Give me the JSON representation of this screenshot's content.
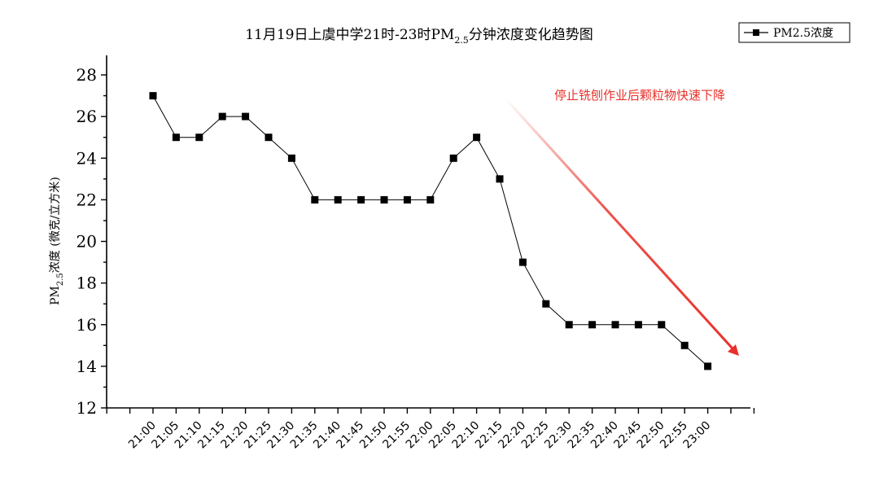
{
  "chart_data": {
    "type": "line",
    "title": {
      "prefix": "11月19日上虞中学21时-23时PM",
      "subscript": "2.5",
      "suffix": "分钟浓度变化趋势图"
    },
    "ylabel": {
      "prefix": "PM",
      "subscript": "2.5",
      "suffix": "浓度 (微克/立方米)"
    },
    "xlabel": "",
    "ylim": [
      12,
      28
    ],
    "yticks": [
      "12",
      "14",
      "16",
      "18",
      "20",
      "22",
      "24",
      "26",
      "28"
    ],
    "categories": [
      "21:00",
      "21:05",
      "21:10",
      "21:15",
      "21:20",
      "21:25",
      "21:30",
      "21:35",
      "21:40",
      "21:45",
      "21:50",
      "21:55",
      "22:00",
      "22:05",
      "22:10",
      "22:15",
      "22:20",
      "22:25",
      "22:30",
      "22:35",
      "22:40",
      "22:45",
      "22:50",
      "22:55",
      "23:00"
    ],
    "series": [
      {
        "name": "PM2.5浓度",
        "values": [
          27,
          25,
          25,
          26,
          26,
          25,
          24,
          22,
          22,
          22,
          22,
          22,
          22,
          24,
          25,
          23,
          19,
          17,
          16,
          16,
          16,
          16,
          16,
          15,
          14
        ]
      }
    ],
    "legend": {
      "position": "top-right",
      "label": "PM2.5浓度"
    },
    "annotation": {
      "text": "停止铣刨作业后颗粒物快速下降",
      "color": "#e8312a"
    },
    "grid": false,
    "colors": {
      "line": "#000000",
      "marker": "#000000",
      "arrow": "#e8312a"
    }
  }
}
